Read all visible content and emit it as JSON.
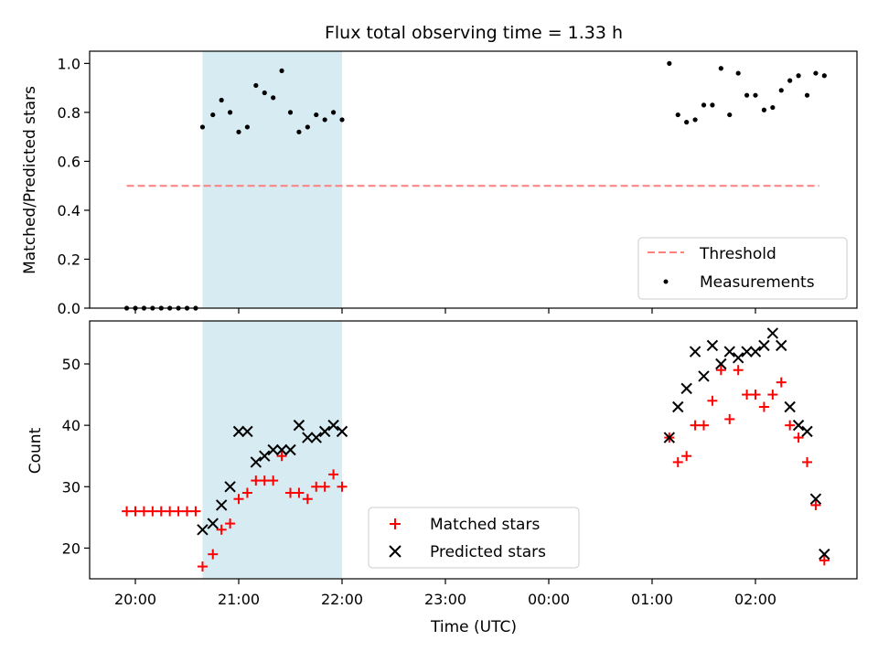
{
  "chart_data": [
    {
      "type": "scatter",
      "title": "Flux total observing time = 1.33 h",
      "ylabel": "Matched/Predicted stars",
      "xlabel": "",
      "ylim": [
        0,
        1.05
      ],
      "yticks": [
        {
          "value": 0.0,
          "label": "0.0"
        },
        {
          "value": 0.2,
          "label": "0.2"
        },
        {
          "value": 0.4,
          "label": "0.4"
        },
        {
          "value": 0.6,
          "label": "0.6"
        },
        {
          "value": 0.8,
          "label": "0.8"
        },
        {
          "value": 1.0,
          "label": "1.0"
        }
      ],
      "shaded_interval": [
        "20:39",
        "22:00"
      ],
      "threshold": {
        "name": "Threshold",
        "value": 0.5,
        "x_range": [
          "19:55",
          "02:37"
        ],
        "color": "#ff7f7f"
      },
      "series": [
        {
          "name": "Measurements",
          "color": "#000000",
          "x": [
            "19:55",
            "20:00",
            "20:05",
            "20:10",
            "20:15",
            "20:20",
            "20:25",
            "20:30",
            "20:35",
            "20:39",
            "20:45",
            "20:50",
            "20:55",
            "21:00",
            "21:05",
            "21:10",
            "21:15",
            "21:20",
            "21:25",
            "21:30",
            "21:35",
            "21:40",
            "21:45",
            "21:50",
            "21:55",
            "22:00",
            "01:10",
            "01:15",
            "01:20",
            "01:25",
            "01:30",
            "01:35",
            "01:40",
            "01:45",
            "01:50",
            "01:55",
            "02:00",
            "02:05",
            "02:10",
            "02:15",
            "02:20",
            "02:25",
            "02:30",
            "02:35",
            "02:40"
          ],
          "y": [
            0,
            0,
            0,
            0,
            0,
            0,
            0,
            0,
            0,
            0.74,
            0.79,
            0.85,
            0.8,
            0.72,
            0.74,
            0.91,
            0.88,
            0.86,
            0.97,
            0.8,
            0.72,
            0.74,
            0.79,
            0.77,
            0.8,
            0.77,
            1.0,
            0.79,
            0.76,
            0.77,
            0.83,
            0.83,
            0.98,
            0.79,
            0.96,
            0.87,
            0.87,
            0.81,
            0.82,
            0.89,
            0.93,
            0.95,
            0.87,
            0.96,
            0.95
          ]
        }
      ],
      "legend": {
        "placement": "lower-right",
        "entries": [
          "Threshold",
          "Measurements"
        ]
      }
    },
    {
      "type": "scatter",
      "title": "",
      "xlabel": "Time (UTC)",
      "ylabel": "Count",
      "ylim": [
        15,
        57
      ],
      "yticks": [
        {
          "value": 20,
          "label": "20"
        },
        {
          "value": 30,
          "label": "30"
        },
        {
          "value": 40,
          "label": "40"
        },
        {
          "value": 50,
          "label": "50"
        }
      ],
      "xticks": [
        {
          "value": "20:00",
          "label": "20:00"
        },
        {
          "value": "21:00",
          "label": "21:00"
        },
        {
          "value": "22:00",
          "label": "22:00"
        },
        {
          "value": "23:00",
          "label": "23:00"
        },
        {
          "value": "00:00",
          "label": "00:00"
        },
        {
          "value": "01:00",
          "label": "01:00"
        },
        {
          "value": "02:00",
          "label": "02:00"
        }
      ],
      "shaded_interval": [
        "20:39",
        "22:00"
      ],
      "series": [
        {
          "name": "Matched stars",
          "marker": "plus",
          "color": "#ff0000",
          "x": [
            "19:55",
            "20:00",
            "20:05",
            "20:10",
            "20:15",
            "20:20",
            "20:25",
            "20:30",
            "20:35",
            "20:39",
            "20:45",
            "20:50",
            "20:55",
            "21:00",
            "21:05",
            "21:10",
            "21:15",
            "21:20",
            "21:25",
            "21:30",
            "21:35",
            "21:40",
            "21:45",
            "21:50",
            "21:55",
            "22:00",
            "01:10",
            "01:15",
            "01:20",
            "01:25",
            "01:30",
            "01:35",
            "01:40",
            "01:45",
            "01:50",
            "01:55",
            "02:00",
            "02:05",
            "02:10",
            "02:15",
            "02:20",
            "02:25",
            "02:30",
            "02:35",
            "02:40"
          ],
          "y": [
            26,
            26,
            26,
            26,
            26,
            26,
            26,
            26,
            26,
            17,
            19,
            23,
            24,
            28,
            29,
            31,
            31,
            31,
            35,
            29,
            29,
            28,
            30,
            30,
            32,
            30,
            38,
            34,
            35,
            40,
            40,
            44,
            49,
            41,
            49,
            45,
            45,
            43,
            45,
            47,
            40,
            38,
            34,
            27,
            18
          ]
        },
        {
          "name": "Predicted stars",
          "marker": "x",
          "color": "#000000",
          "x": [
            "20:39",
            "20:45",
            "20:50",
            "20:55",
            "21:00",
            "21:05",
            "21:10",
            "21:15",
            "21:20",
            "21:25",
            "21:30",
            "21:35",
            "21:40",
            "21:45",
            "21:50",
            "21:55",
            "22:00",
            "01:10",
            "01:15",
            "01:20",
            "01:25",
            "01:30",
            "01:35",
            "01:40",
            "01:45",
            "01:50",
            "01:55",
            "02:00",
            "02:05",
            "02:10",
            "02:15",
            "02:20",
            "02:25",
            "02:30",
            "02:35",
            "02:40"
          ],
          "y": [
            23,
            24,
            27,
            30,
            39,
            39,
            34,
            35,
            36,
            36,
            36,
            40,
            38,
            38,
            39,
            40,
            39,
            38,
            43,
            46,
            52,
            48,
            53,
            50,
            52,
            51,
            52,
            52,
            53,
            55,
            53,
            43,
            40,
            39,
            28,
            19
          ]
        }
      ],
      "legend": {
        "placement": "lower-center",
        "entries": [
          "Matched stars",
          "Predicted stars"
        ]
      }
    }
  ]
}
